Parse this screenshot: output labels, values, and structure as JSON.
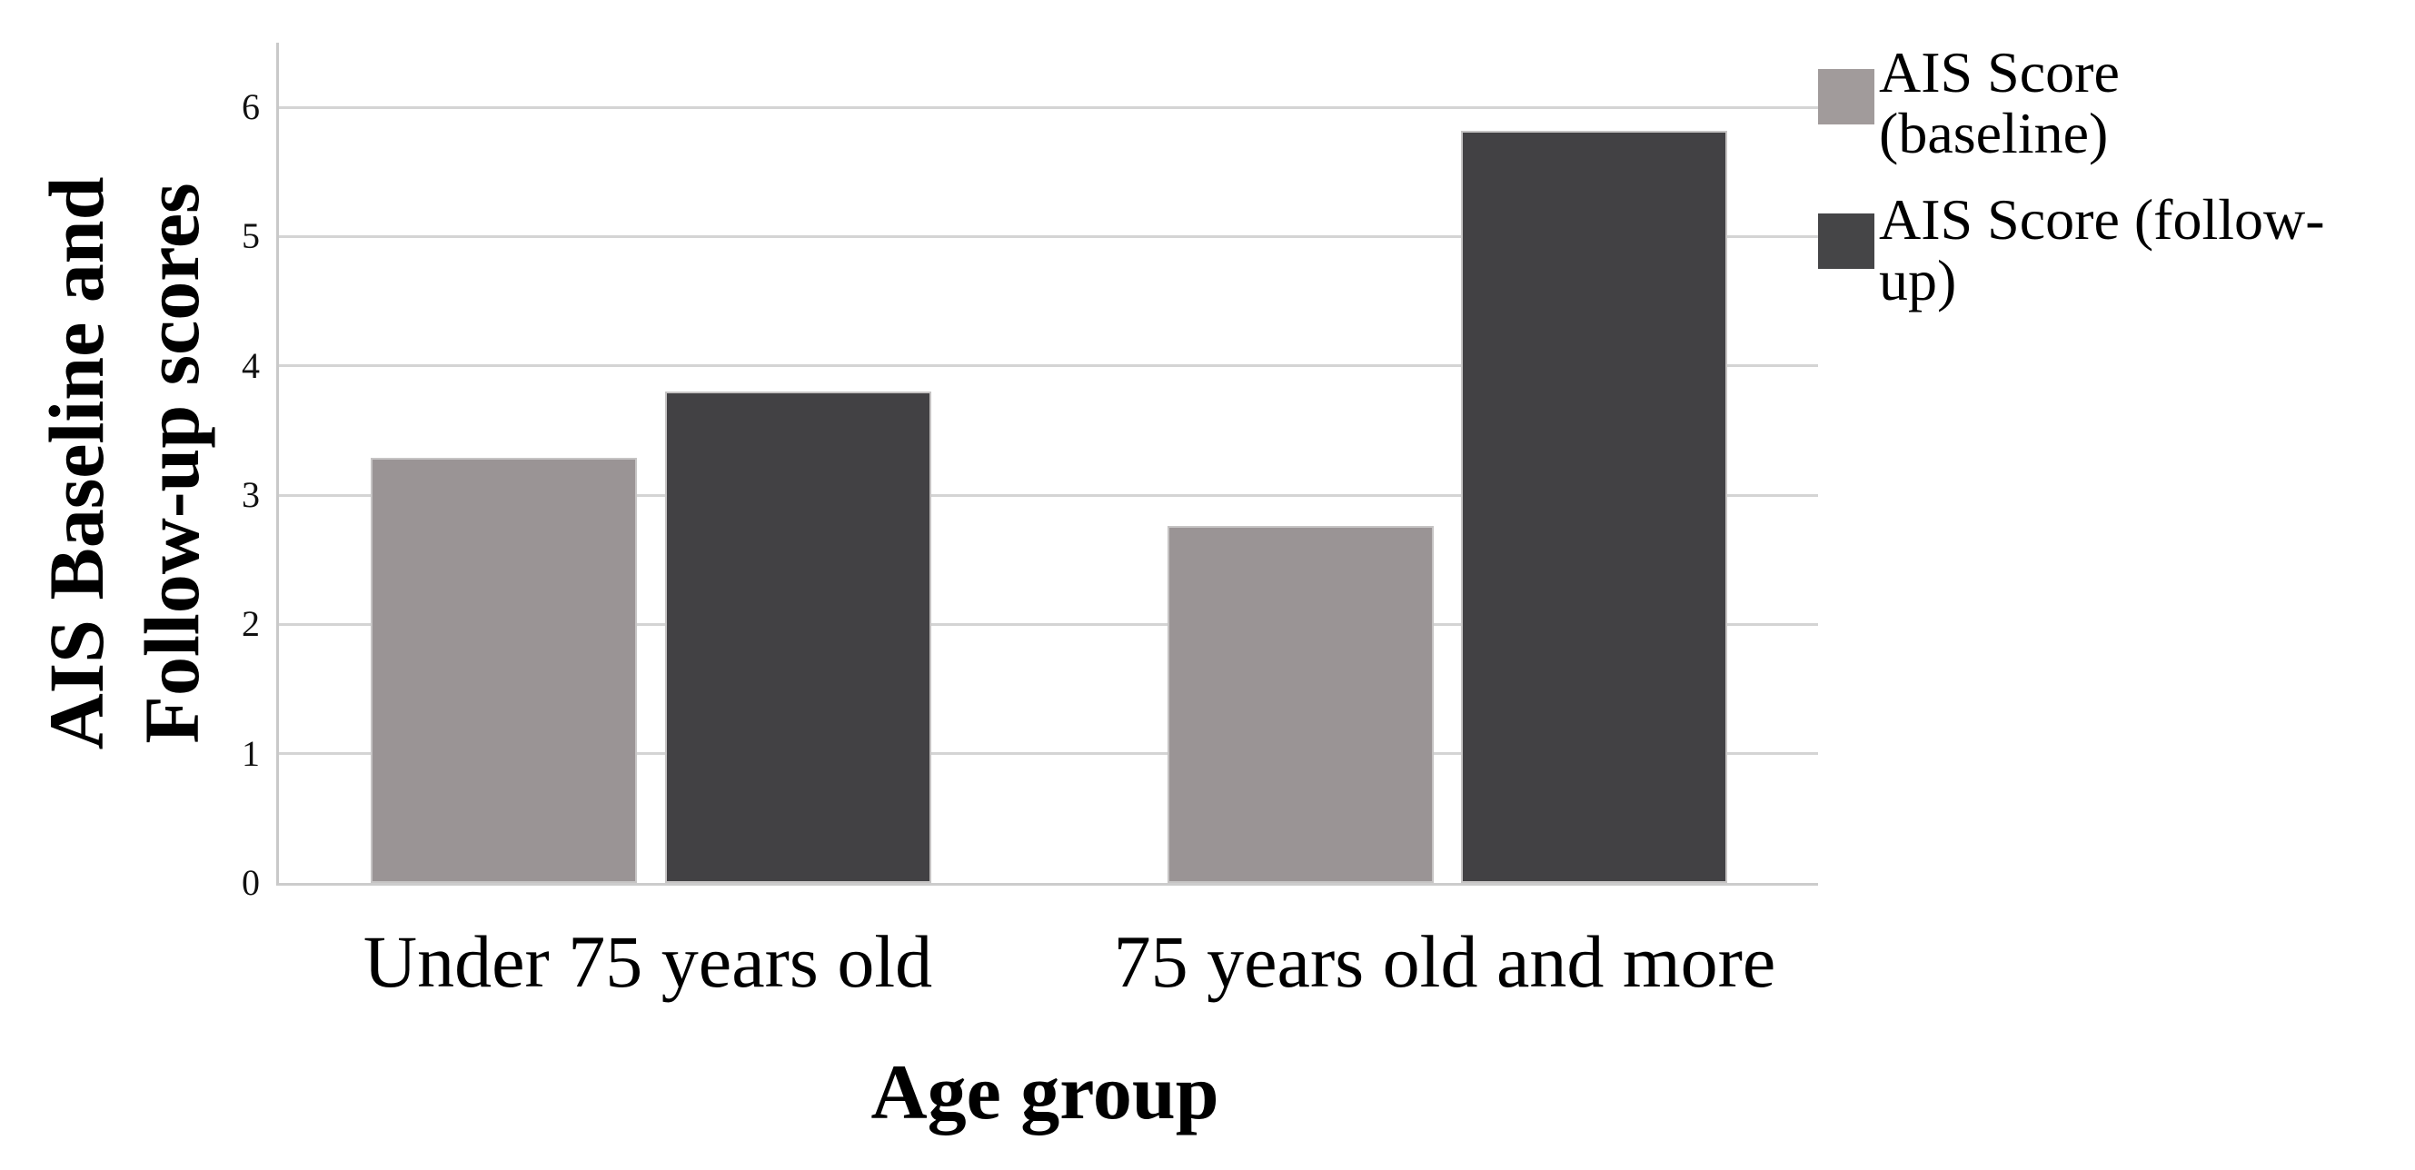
{
  "chart_data": {
    "type": "bar",
    "title": "",
    "categories": [
      "Under 75 years old",
      "75 years old and more"
    ],
    "series": [
      {
        "name": "AIS Score (baseline)",
        "values": [
          3.29,
          2.76
        ],
        "color": "#9a9495"
      },
      {
        "name": "AIS Score (follow-up)",
        "values": [
          3.8,
          5.82
        ],
        "color": "#424144"
      }
    ],
    "xlabel": "Age group",
    "ylabel": "AIS Baseline and Follow-up scores",
    "ylabel_lines": [
      "AIS Baseline and",
      "Follow-up scores"
    ],
    "ylim": [
      0,
      6.5
    ],
    "yticks": [
      0,
      1,
      2,
      3,
      4,
      5,
      6
    ],
    "grid": "horizontal",
    "legend_position": "top-right-outside"
  },
  "legend": {
    "items": [
      {
        "label": "AIS Score (baseline)",
        "lines": [
          "AIS Score",
          "(baseline)"
        ],
        "color": "#a19b9b"
      },
      {
        "label": "AIS Score (follow-up)",
        "lines": [
          "AIS Score (follow-",
          "up)"
        ],
        "color": "#454547"
      }
    ]
  },
  "colors": {
    "gridline": "#d4d4d4",
    "axis": "#c9c9c9",
    "bar_baseline": "#9a9495",
    "bar_followup": "#424144",
    "text": "#000000"
  }
}
